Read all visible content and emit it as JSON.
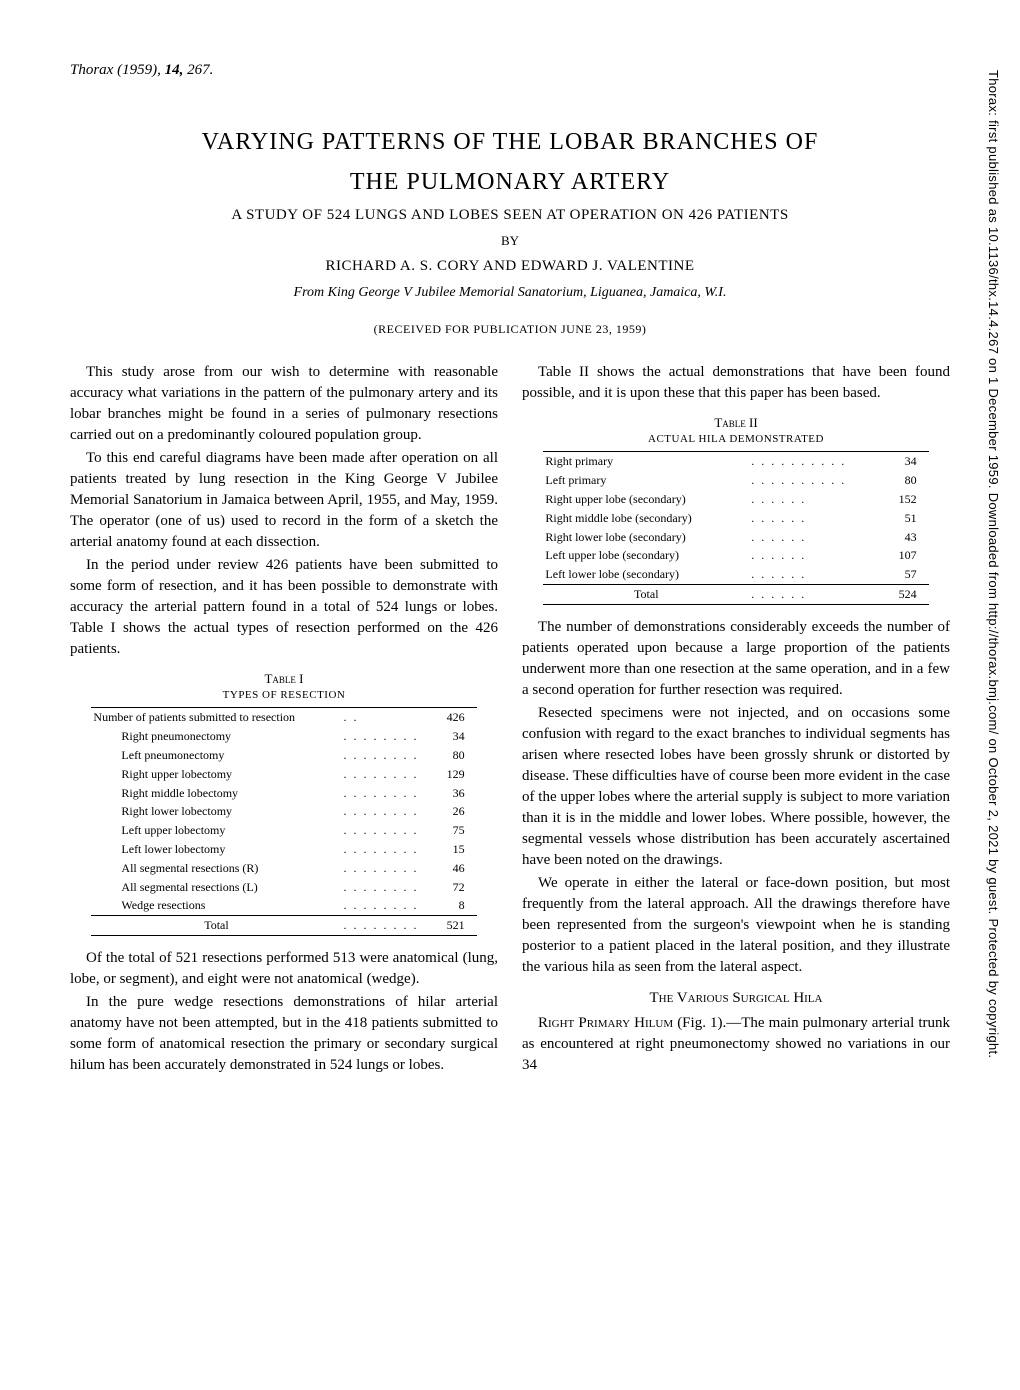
{
  "citation_prefix": "Thorax (1959), ",
  "citation_vol": "14,",
  "citation_page": " 267.",
  "title_l1": "VARYING PATTERNS OF THE LOBAR BRANCHES OF",
  "title_l2": "THE PULMONARY ARTERY",
  "subtitle": "A STUDY OF 524 LUNGS AND LOBES SEEN AT OPERATION ON 426 PATIENTS",
  "by": "BY",
  "authors": "RICHARD A. S. CORY AND EDWARD J. VALENTINE",
  "affiliation": "From King George V Jubilee Memorial Sanatorium, Liguanea, Jamaica, W.I.",
  "received": "(RECEIVED FOR PUBLICATION JUNE 23, 1959)",
  "left": {
    "p1": "This study arose from our wish to determine with reasonable accuracy what variations in the pattern of the pulmonary artery and its lobar branches might be found in a series of pulmonary resections carried out on a predominantly coloured population group.",
    "p2": "To this end careful diagrams have been made after operation on all patients treated by lung resection in the King George V Jubilee Memorial Sanatorium in Jamaica between April, 1955, and May, 1959. The operator (one of us) used to record in the form of a sketch the arterial anatomy found at each dissection.",
    "p3": "In the period under review 426 patients have been submitted to some form of resection, and it has been possible to demonstrate with accuracy the arterial pattern found in a total of 524 lungs or lobes. Table I shows the actual types of resection performed on the 426 patients.",
    "p4": "Of the total of 521 resections performed 513 were anatomical (lung, lobe, or segment), and eight were not anatomical (wedge).",
    "p5": "In the pure wedge resections demonstrations of hilar arterial anatomy have not been attempted, but in the 418 patients submitted to some form of anatomical resection the primary or secondary surgical hilum has been accurately demonstrated in 524 lungs or lobes."
  },
  "right": {
    "p1": "Table II shows the actual demonstrations that have been found possible, and it is upon these that this paper has been based.",
    "p2": "The number of demonstrations considerably exceeds the number of patients operated upon because a large proportion of the patients underwent more than one resection at the same operation, and in a few a second operation for further resection was required.",
    "p3": "Resected specimens were not injected, and on occasions some confusion with regard to the exact branches to individual segments has arisen where resected lobes have been grossly shrunk or distorted by disease. These difficulties have of course been more evident in the case of the upper lobes where the arterial supply is subject to more variation than it is in the middle and lower lobes. Where possible, however, the segmental vessels whose distribution has been accurately ascertained have been noted on the drawings.",
    "p4": "We operate in either the lateral or face-down position, but most frequently from the lateral approach. All the drawings therefore have been represented from the surgeon's viewpoint when he is standing posterior to a patient placed in the lateral position, and they illustrate the various hila as seen from the lateral aspect.",
    "section_head": "The Various Surgical Hila",
    "p5_head": "Right Primary Hilum",
    "p5_ref": "(Fig. 1).—",
    "p5_body": "The main pulmonary arterial trunk as encountered at right pneumonectomy showed no variations in our 34"
  },
  "table1": {
    "label": "Table I",
    "title": "TYPES OF RESECTION",
    "header": {
      "label": "Number of patients submitted to resection",
      "value": "426"
    },
    "rows": [
      {
        "label": "Right pneumonectomy",
        "value": "34"
      },
      {
        "label": "Left pneumonectomy",
        "value": "80"
      },
      {
        "label": "Right upper lobectomy",
        "value": "129"
      },
      {
        "label": "Right middle lobectomy",
        "value": "36"
      },
      {
        "label": "Right lower lobectomy",
        "value": "26"
      },
      {
        "label": "Left upper lobectomy",
        "value": "75"
      },
      {
        "label": "Left lower lobectomy",
        "value": "15"
      },
      {
        "label": "All segmental resections (R)",
        "value": "46"
      },
      {
        "label": "All segmental resections (L)",
        "value": "72"
      },
      {
        "label": "Wedge resections",
        "value": "8"
      }
    ],
    "total_label": "Total",
    "total_value": "521"
  },
  "table2": {
    "label": "Table II",
    "title": "ACTUAL HILA DEMONSTRATED",
    "rows": [
      {
        "label": "Right primary",
        "value": "34"
      },
      {
        "label": "Left primary",
        "value": "80"
      },
      {
        "label": "Right upper lobe (secondary)",
        "value": "152"
      },
      {
        "label": "Right middle lobe (secondary)",
        "value": "51"
      },
      {
        "label": "Right lower lobe (secondary)",
        "value": "43"
      },
      {
        "label": "Left upper lobe (secondary)",
        "value": "107"
      },
      {
        "label": "Left lower lobe (secondary)",
        "value": "57"
      }
    ],
    "total_label": "Total",
    "total_value": "524"
  },
  "sidebar": "Thorax: first published as 10.1136/thx.14.4.267 on 1 December 1959. Downloaded from http://thorax.bmj.com/ on October 2, 2021 by guest. Protected by copyright."
}
